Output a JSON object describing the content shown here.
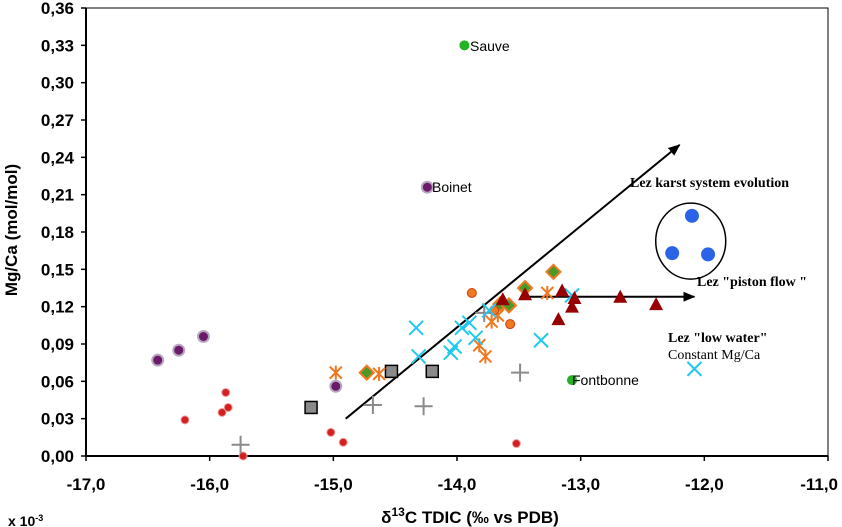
{
  "chart_data": {
    "type": "scatter",
    "xlabel": "δ13C TDIC (‰ vs PDB)",
    "ylabel": "Mg/Ca (mol/mol)",
    "xlim": [
      -17.0,
      -11.0
    ],
    "ylim": [
      0.0,
      0.36
    ],
    "x_ticks": [
      "-17,0",
      "-16,0",
      "-15,0",
      "-14,0",
      "-13,0",
      "-12,0",
      "-11,0"
    ],
    "y_ticks": [
      "0,00",
      "0,03",
      "0,06",
      "0,09",
      "0,12",
      "0,15",
      "0,18",
      "0,21",
      "0,24",
      "0,27",
      "0,30",
      "0,33",
      "0,36"
    ],
    "corner_note": "x 10-3",
    "grid": false,
    "series": [
      {
        "marker": "purple-circle",
        "color": "#6a1b6a",
        "points": [
          [
            -16.42,
            0.077
          ],
          [
            -16.25,
            0.085
          ],
          [
            -16.05,
            0.096
          ],
          [
            -14.98,
            0.056
          ],
          [
            -14.24,
            0.216
          ]
        ]
      },
      {
        "marker": "small-red-circle",
        "color": "#d42020",
        "points": [
          [
            -16.2,
            0.029
          ],
          [
            -15.9,
            0.035
          ],
          [
            -15.87,
            0.051
          ],
          [
            -15.85,
            0.039
          ],
          [
            -15.73,
            0.0
          ],
          [
            -15.02,
            0.019
          ],
          [
            -14.92,
            0.011
          ],
          [
            -13.52,
            0.01
          ]
        ]
      },
      {
        "marker": "gray-cross",
        "color": "#8a8a8a",
        "points": [
          [
            -15.75,
            0.009
          ],
          [
            -14.68,
            0.041
          ],
          [
            -14.27,
            0.04
          ],
          [
            -13.49,
            0.067
          ],
          [
            -13.78,
            0.115
          ]
        ]
      },
      {
        "marker": "gray-square",
        "color": "#8a8a8a",
        "points": [
          [
            -15.18,
            0.039
          ],
          [
            -14.53,
            0.068
          ],
          [
            -14.2,
            0.068
          ]
        ]
      },
      {
        "marker": "green-diamond",
        "color": "#4a9a2a",
        "points": [
          [
            -14.73,
            0.067
          ],
          [
            -13.65,
            0.122
          ],
          [
            -13.58,
            0.121
          ],
          [
            -13.45,
            0.135
          ],
          [
            -13.22,
            0.148
          ]
        ]
      },
      {
        "marker": "orange-asterisk",
        "color": "#f07820",
        "points": [
          [
            -14.98,
            0.067
          ],
          [
            -14.63,
            0.066
          ],
          [
            -13.82,
            0.089
          ],
          [
            -13.77,
            0.08
          ],
          [
            -13.72,
            0.108
          ],
          [
            -13.67,
            0.113
          ],
          [
            -13.27,
            0.131
          ]
        ]
      },
      {
        "marker": "orange-circle",
        "color": "#f07820",
        "points": [
          [
            -13.88,
            0.131
          ],
          [
            -13.57,
            0.106
          ],
          [
            -13.7,
            0.117
          ]
        ]
      },
      {
        "marker": "cyan-x",
        "color": "#22c8f0",
        "points": [
          [
            -14.33,
            0.103
          ],
          [
            -14.31,
            0.08
          ],
          [
            -14.05,
            0.083
          ],
          [
            -14.02,
            0.088
          ],
          [
            -13.96,
            0.103
          ],
          [
            -13.9,
            0.107
          ],
          [
            -13.85,
            0.095
          ],
          [
            -13.32,
            0.093
          ],
          [
            -13.07,
            0.129
          ],
          [
            -12.08,
            0.07
          ],
          [
            -13.74,
            0.117
          ]
        ]
      },
      {
        "marker": "dark-red-triangle",
        "color": "#960000",
        "points": [
          [
            -13.63,
            0.126
          ],
          [
            -13.45,
            0.13
          ],
          [
            -13.18,
            0.11
          ],
          [
            -13.15,
            0.133
          ],
          [
            -13.07,
            0.12
          ],
          [
            -13.05,
            0.127
          ],
          [
            -12.68,
            0.128
          ],
          [
            -12.39,
            0.122
          ]
        ]
      },
      {
        "marker": "green-circle",
        "color": "#22b322",
        "points": [
          [
            -13.94,
            0.33
          ],
          [
            -13.07,
            0.061
          ]
        ]
      },
      {
        "marker": "blue-circle",
        "color": "#2b63e6",
        "points": [
          [
            -12.1,
            0.193
          ],
          [
            -12.26,
            0.163
          ],
          [
            -11.97,
            0.162
          ]
        ]
      }
    ],
    "arrows": [
      {
        "from": [
          -14.9,
          0.03
        ],
        "to": [
          -12.2,
          0.25
        ]
      },
      {
        "from": [
          -13.45,
          0.128
        ],
        "to": [
          -12.08,
          0.128
        ]
      }
    ],
    "point_labels": [
      {
        "text": "Sauve",
        "at": [
          -13.94,
          0.33
        ]
      },
      {
        "text": "Boinet",
        "at": [
          -14.24,
          0.216
        ]
      },
      {
        "text": "Fontbonne",
        "at": [
          -13.07,
          0.061
        ]
      }
    ],
    "annotations": {
      "evolution": "Lez karst system evolution",
      "piston": "Lez \"piston flow \"",
      "low_water": "Lez \"low water\"",
      "constant": "Constant Mg/Ca"
    }
  }
}
